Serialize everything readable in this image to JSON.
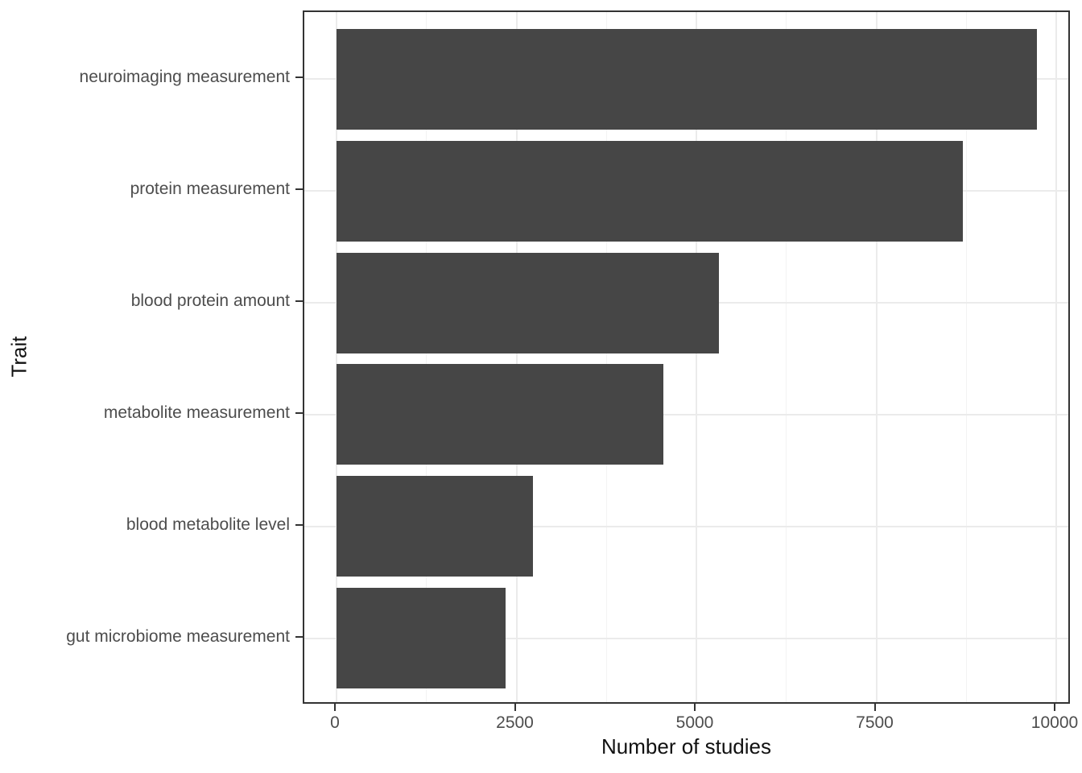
{
  "chart_data": {
    "type": "bar",
    "orientation": "horizontal",
    "title": "",
    "xlabel": "Number of studies",
    "ylabel": "Trait",
    "categories": [
      "neuroimaging measurement",
      "protein measurement",
      "blood protein amount",
      "metabolite measurement",
      "blood metabolite level",
      "gut microbiome measurement"
    ],
    "values": [
      9730,
      8700,
      5310,
      4540,
      2730,
      2350
    ],
    "xlim": [
      0,
      10000
    ],
    "x_ticks": [
      0,
      2500,
      5000,
      7500,
      10000
    ],
    "x_tick_labels": [
      "0",
      "2500",
      "5000",
      "7500",
      "10000"
    ],
    "x_minor_ticks": [
      1250,
      3750,
      6250,
      8750
    ],
    "grid": "vertical major+minor, horizontal major at category centers",
    "legend_position": "none",
    "colors": {
      "bar": "#464646",
      "panel_border": "#333333",
      "grid_major": "#ebebeb",
      "grid_minor": "#f3f3f3",
      "tick_mark": "#333333",
      "axis_text": "#4d4d4d",
      "axis_title": "#111111",
      "background": "#ffffff"
    }
  }
}
